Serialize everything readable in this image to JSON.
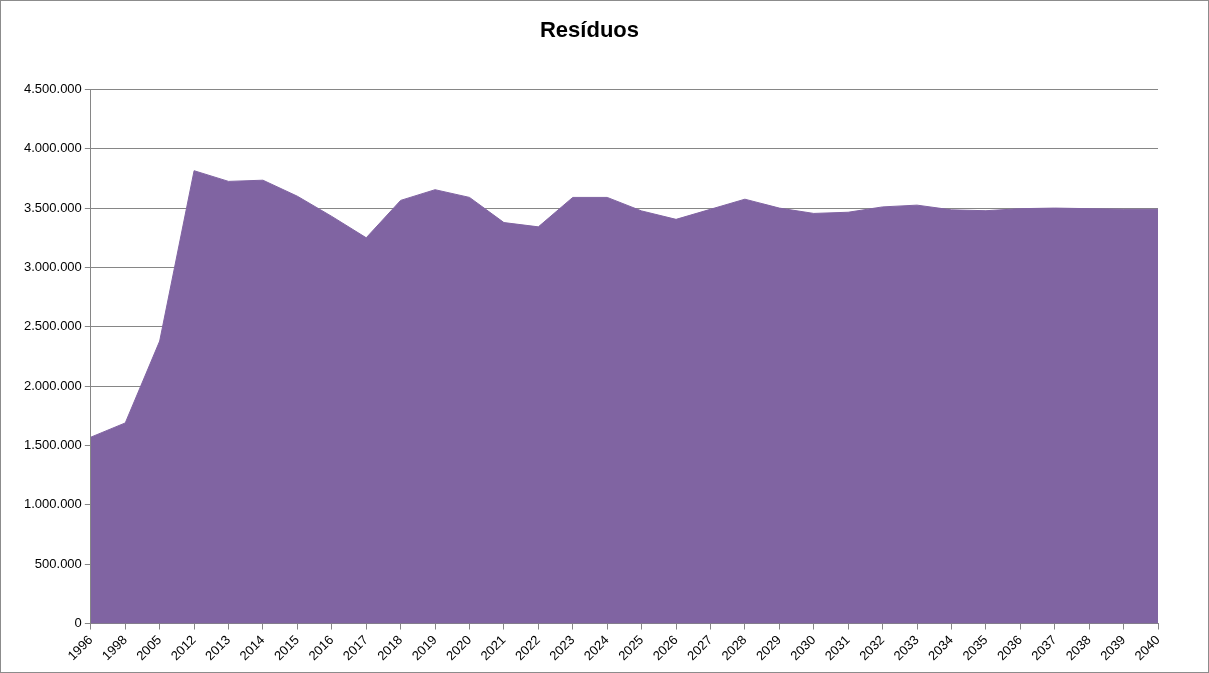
{
  "chart_data": {
    "type": "area",
    "title": "Resíduos",
    "categories": [
      "1996",
      "1998",
      "2005",
      "2012",
      "2013",
      "2014",
      "2015",
      "2016",
      "2017",
      "2018",
      "2019",
      "2020",
      "2021",
      "2022",
      "2023",
      "2024",
      "2025",
      "2026",
      "2027",
      "2028",
      "2029",
      "2030",
      "2031",
      "2032",
      "2033",
      "2034",
      "2035",
      "2036",
      "2037",
      "2038",
      "2039",
      "2040"
    ],
    "series": [
      {
        "color": "#8064a2",
        "values": [
          1570000,
          1690000,
          2380000,
          3815000,
          3725000,
          3735000,
          3600000,
          3430000,
          3250000,
          3565000,
          3655000,
          3590000,
          3378000,
          3342000,
          3590000,
          3590000,
          3476000,
          3405000,
          3490000,
          3575000,
          3500000,
          3455000,
          3465000,
          3510000,
          3525000,
          3485000,
          3478000,
          3495000,
          3500000,
          3495000,
          3490000,
          3490000
        ]
      }
    ],
    "ylim": [
      0,
      4500000
    ],
    "yticks": [
      {
        "value": 0,
        "label": "0"
      },
      {
        "value": 500000,
        "label": "500.000"
      },
      {
        "value": 1000000,
        "label": "1.000.000"
      },
      {
        "value": 1500000,
        "label": "1.500.000"
      },
      {
        "value": 2000000,
        "label": "2.000.000"
      },
      {
        "value": 2500000,
        "label": "2.500.000"
      },
      {
        "value": 3000000,
        "label": "3.000.000"
      },
      {
        "value": 3500000,
        "label": "3.500.000"
      },
      {
        "value": 4000000,
        "label": "4.000.000"
      },
      {
        "value": 4500000,
        "label": "4.500.000"
      }
    ],
    "grid": "y",
    "legend": false
  }
}
